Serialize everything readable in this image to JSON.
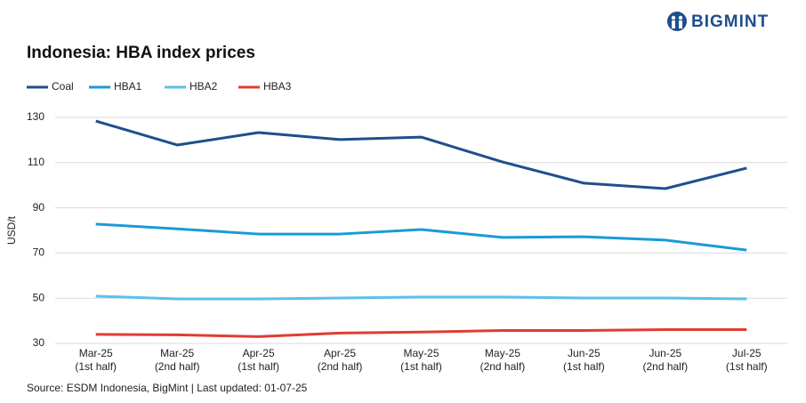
{
  "brand": "BIGMINT",
  "chart_data": {
    "type": "line",
    "title": "Indonesia: HBA index prices",
    "y_label": "USD/t",
    "source": "Source: ESDM Indonesia, BigMint | Last updated: 01-07-25",
    "categories": [
      "Mar-25\n(1st half)",
      "Mar-25\n(2nd half)",
      "Apr-25\n(1st half)",
      "Apr-25\n(2nd half)",
      "May-25\n(1st half)",
      "May-25\n(2nd half)",
      "Jun-25\n(1st half)",
      "Jun-25\n(2nd half)",
      "Jul-25\n(1st half)"
    ],
    "series": [
      {
        "name": "Coal",
        "color": "#1f4e8c",
        "values": [
          128.4,
          117.8,
          123.3,
          120.2,
          121.3,
          110.3,
          100.9,
          98.5,
          107.6
        ]
      },
      {
        "name": "HBA1",
        "color": "#1b9ad6",
        "values": [
          82.8,
          80.7,
          78.4,
          78.4,
          80.4,
          76.9,
          77.2,
          75.7,
          71.3
        ]
      },
      {
        "name": "HBA2",
        "color": "#5bc0eb",
        "values": [
          50.9,
          49.7,
          49.7,
          50.1,
          50.5,
          50.5,
          50.1,
          50.1,
          49.7
        ]
      },
      {
        "name": "HBA3",
        "color": "#e03c31",
        "values": [
          34.0,
          33.8,
          33.0,
          34.6,
          35.0,
          35.7,
          35.7,
          36.1,
          36.1
        ]
      }
    ],
    "ylim": [
      30,
      130
    ],
    "yticks": [
      30,
      50,
      70,
      90,
      110,
      130
    ],
    "grid": true,
    "legend": "top-left"
  }
}
